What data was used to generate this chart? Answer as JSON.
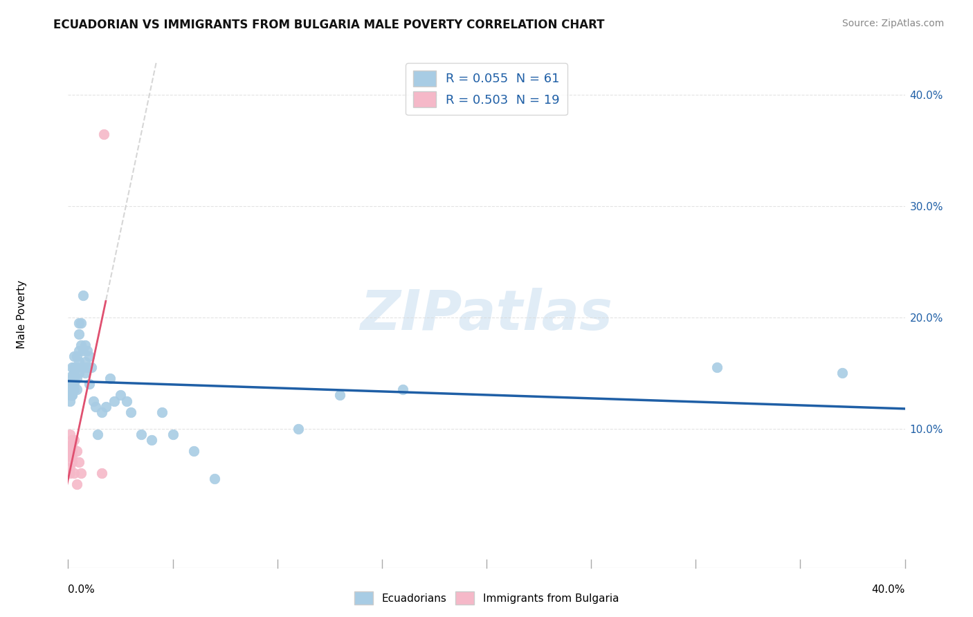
{
  "title": "ECUADORIAN VS IMMIGRANTS FROM BULGARIA MALE POVERTY CORRELATION CHART",
  "source": "Source: ZipAtlas.com",
  "ylabel": "Male Poverty",
  "right_yticks": [
    "40.0%",
    "30.0%",
    "20.0%",
    "10.0%"
  ],
  "right_ytick_vals": [
    0.4,
    0.3,
    0.2,
    0.1
  ],
  "watermark": "ZIPatlas",
  "legend1_label": "R = 0.055  N = 61",
  "legend2_label": "R = 0.503  N = 19",
  "blue_color": "#a8cce4",
  "blue_line_color": "#1f5fa6",
  "pink_color": "#f5b8c8",
  "pink_line_color": "#e05070",
  "dashed_line_color": "#cccccc",
  "background_color": "#ffffff",
  "grid_color": "#d8d8d8",
  "xlim": [
    0.0,
    0.4
  ],
  "ylim": [
    -0.025,
    0.43
  ],
  "blue_x": [
    0.001,
    0.001,
    0.001,
    0.001,
    0.001,
    0.002,
    0.002,
    0.002,
    0.002,
    0.002,
    0.002,
    0.002,
    0.003,
    0.003,
    0.003,
    0.003,
    0.003,
    0.003,
    0.004,
    0.004,
    0.004,
    0.004,
    0.005,
    0.005,
    0.005,
    0.005,
    0.005,
    0.006,
    0.006,
    0.007,
    0.007,
    0.007,
    0.008,
    0.008,
    0.008,
    0.009,
    0.009,
    0.01,
    0.01,
    0.011,
    0.012,
    0.013,
    0.014,
    0.016,
    0.018,
    0.02,
    0.022,
    0.025,
    0.028,
    0.03,
    0.035,
    0.04,
    0.045,
    0.05,
    0.06,
    0.07,
    0.11,
    0.13,
    0.16,
    0.31,
    0.37
  ],
  "blue_y": [
    0.14,
    0.135,
    0.135,
    0.13,
    0.125,
    0.155,
    0.148,
    0.145,
    0.14,
    0.138,
    0.13,
    0.13,
    0.165,
    0.155,
    0.15,
    0.145,
    0.14,
    0.135,
    0.165,
    0.155,
    0.145,
    0.135,
    0.195,
    0.185,
    0.17,
    0.16,
    0.15,
    0.195,
    0.175,
    0.22,
    0.17,
    0.155,
    0.175,
    0.16,
    0.15,
    0.17,
    0.155,
    0.165,
    0.14,
    0.155,
    0.125,
    0.12,
    0.095,
    0.115,
    0.12,
    0.145,
    0.125,
    0.13,
    0.125,
    0.115,
    0.095,
    0.09,
    0.115,
    0.095,
    0.08,
    0.055,
    0.1,
    0.13,
    0.135,
    0.155,
    0.15
  ],
  "pink_x": [
    0.001,
    0.001,
    0.001,
    0.001,
    0.001,
    0.001,
    0.002,
    0.002,
    0.002,
    0.002,
    0.002,
    0.003,
    0.003,
    0.004,
    0.004,
    0.005,
    0.006,
    0.016,
    0.017
  ],
  "pink_y": [
    0.095,
    0.085,
    0.08,
    0.075,
    0.065,
    0.06,
    0.09,
    0.085,
    0.08,
    0.075,
    0.07,
    0.09,
    0.06,
    0.08,
    0.05,
    0.07,
    0.06,
    0.06,
    0.365
  ],
  "xtick_positions": [
    0.0,
    0.05,
    0.1,
    0.15,
    0.2,
    0.25,
    0.3,
    0.35,
    0.4
  ],
  "xtick_labels": [
    "",
    "",
    "",
    "",
    "",
    "",
    "",
    "",
    ""
  ]
}
